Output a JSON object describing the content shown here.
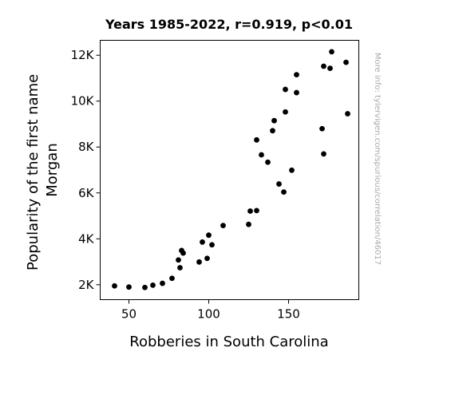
{
  "chart_data": {
    "type": "scatter",
    "title": "Years 1985-2022, r=0.919, p<0.01",
    "xlabel": "Robberies in South Carolina",
    "ylabel_lines": [
      "Popularity of the first name",
      "Morgan"
    ],
    "watermark": "More info: tylervigen.com/spurious/correlation/46017",
    "xlim": [
      32,
      194
    ],
    "ylim": [
      1350,
      12650
    ],
    "x_ticks": [
      {
        "value": 50,
        "label": "50"
      },
      {
        "value": 100,
        "label": "100"
      },
      {
        "value": 150,
        "label": "150"
      }
    ],
    "y_ticks": [
      {
        "value": 2000,
        "label": "2K"
      },
      {
        "value": 4000,
        "label": "4K"
      },
      {
        "value": 6000,
        "label": "6K"
      },
      {
        "value": 8000,
        "label": "8K"
      },
      {
        "value": 10000,
        "label": "10K"
      },
      {
        "value": 12000,
        "label": "12K"
      }
    ],
    "grid": false,
    "marker_color": "#000000",
    "points": [
      {
        "x": 41,
        "y": 1950
      },
      {
        "x": 50,
        "y": 1900
      },
      {
        "x": 60,
        "y": 1880
      },
      {
        "x": 65,
        "y": 1980
      },
      {
        "x": 71,
        "y": 2060
      },
      {
        "x": 77,
        "y": 2280
      },
      {
        "x": 81,
        "y": 3080
      },
      {
        "x": 82,
        "y": 2740
      },
      {
        "x": 83,
        "y": 3490
      },
      {
        "x": 84,
        "y": 3380
      },
      {
        "x": 94,
        "y": 2990
      },
      {
        "x": 96,
        "y": 3860
      },
      {
        "x": 99,
        "y": 3150
      },
      {
        "x": 100,
        "y": 4160
      },
      {
        "x": 102,
        "y": 3740
      },
      {
        "x": 109,
        "y": 4580
      },
      {
        "x": 125,
        "y": 4630
      },
      {
        "x": 126,
        "y": 5210
      },
      {
        "x": 130,
        "y": 5230
      },
      {
        "x": 130,
        "y": 8310
      },
      {
        "x": 133,
        "y": 7660
      },
      {
        "x": 137,
        "y": 7340
      },
      {
        "x": 140,
        "y": 8710
      },
      {
        "x": 141,
        "y": 9150
      },
      {
        "x": 144,
        "y": 6390
      },
      {
        "x": 147,
        "y": 6040
      },
      {
        "x": 148,
        "y": 9530
      },
      {
        "x": 148,
        "y": 10510
      },
      {
        "x": 152,
        "y": 6990
      },
      {
        "x": 155,
        "y": 10370
      },
      {
        "x": 155,
        "y": 11150
      },
      {
        "x": 171,
        "y": 8800
      },
      {
        "x": 172,
        "y": 7700
      },
      {
        "x": 172,
        "y": 11520
      },
      {
        "x": 176,
        "y": 11430
      },
      {
        "x": 177,
        "y": 12150
      },
      {
        "x": 186,
        "y": 11690
      },
      {
        "x": 187,
        "y": 9450
      }
    ]
  }
}
